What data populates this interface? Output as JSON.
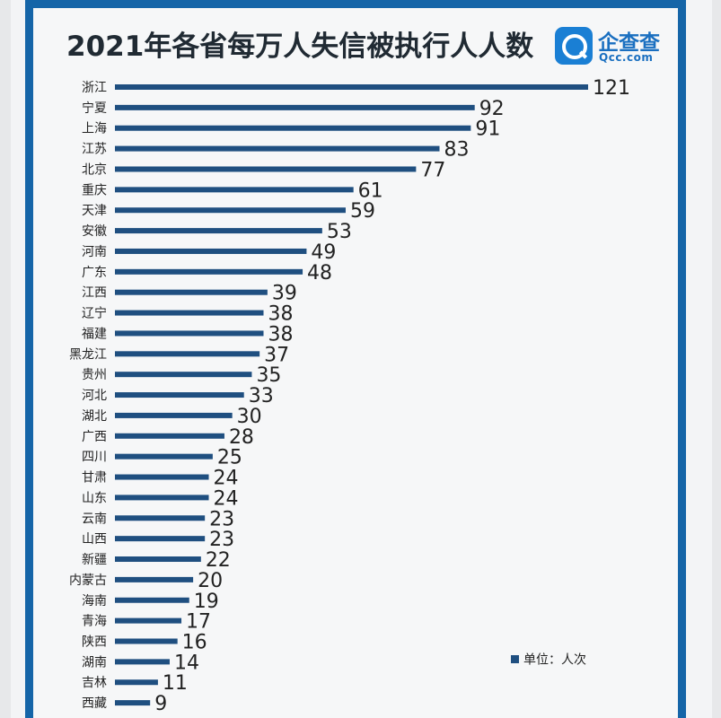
{
  "title": "2021年各省每万人失信被执行人人数",
  "logo": {
    "name": "企查查",
    "domain": "Qcc.com",
    "icon": "magnifier-icon"
  },
  "legend": {
    "label": "单位：人次"
  },
  "colors": {
    "bar": "#1f4f80",
    "frame": "#1565a8",
    "text": "#202a33"
  },
  "chart_data": {
    "type": "bar",
    "orientation": "horizontal",
    "title": "2021年各省每万人失信被执行人人数",
    "unit": "单位：人次",
    "categories": [
      "浙江",
      "宁夏",
      "上海",
      "江苏",
      "北京",
      "重庆",
      "天津",
      "安徽",
      "河南",
      "广东",
      "江西",
      "辽宁",
      "福建",
      "黑龙江",
      "贵州",
      "河北",
      "湖北",
      "广西",
      "四川",
      "甘肃",
      "山东",
      "云南",
      "山西",
      "新疆",
      "内蒙古",
      "海南",
      "青海",
      "陕西",
      "湖南",
      "吉林",
      "西藏"
    ],
    "values": [
      121,
      92,
      91,
      83,
      77,
      61,
      59,
      53,
      49,
      48,
      39,
      38,
      38,
      37,
      35,
      33,
      30,
      28,
      25,
      24,
      24,
      23,
      23,
      22,
      20,
      19,
      17,
      16,
      14,
      11,
      9
    ],
    "xlim": [
      0,
      121
    ],
    "grid": false,
    "legend_position": "bottom-right"
  }
}
